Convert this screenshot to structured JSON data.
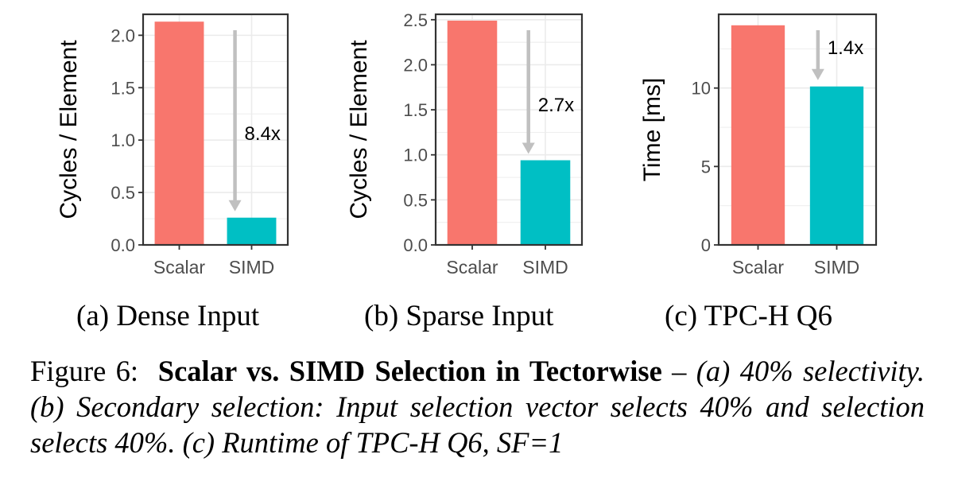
{
  "chart_data": [
    {
      "type": "bar",
      "categories": [
        "Scalar",
        "SIMD"
      ],
      "values": [
        2.13,
        0.26
      ],
      "ylabel": "Cycles / Element",
      "ylim": [
        0,
        2.2
      ],
      "yticks": [
        "0.0",
        "0.5",
        "1.0",
        "1.5",
        "2.0"
      ],
      "ytick_values": [
        0,
        0.5,
        1.0,
        1.5,
        2.0
      ],
      "annotation": "8.4x",
      "bar_colors": [
        "#f8766d",
        "#00bfc4"
      ],
      "grid": true
    },
    {
      "type": "bar",
      "categories": [
        "Scalar",
        "SIMD"
      ],
      "values": [
        2.49,
        0.94
      ],
      "ylabel": "Cycles / Element",
      "ylim": [
        0,
        2.56
      ],
      "yticks": [
        "0.0",
        "0.5",
        "1.0",
        "1.5",
        "2.0",
        "2.5"
      ],
      "ytick_values": [
        0,
        0.5,
        1.0,
        1.5,
        2.0,
        2.5
      ],
      "annotation": "2.7x",
      "bar_colors": [
        "#f8766d",
        "#00bfc4"
      ],
      "grid": true
    },
    {
      "type": "bar",
      "categories": [
        "Scalar",
        "SIMD"
      ],
      "values": [
        14.0,
        10.1
      ],
      "ylabel": "Time [ms]",
      "ylim": [
        0,
        14.7
      ],
      "yticks": [
        "0",
        "5",
        "10"
      ],
      "ytick_values": [
        0,
        5,
        10
      ],
      "annotation": "1.4x",
      "bar_colors": [
        "#f8766d",
        "#00bfc4"
      ],
      "grid": true
    }
  ],
  "subcaptions": [
    "(a) Dense Input",
    "(b) Sparse Input",
    "(c) TPC-H Q6"
  ],
  "caption": {
    "prefix": "Figure 6:",
    "bold": "Scalar vs. SIMD Selection in Tectorwise",
    "dash": " – ",
    "italic": "(a) 40% selectivity. (b) Secondary selection: Input selection vector selects 40% and selection selects 40%. (c) Runtime of TPC-H Q6, SF=1"
  }
}
